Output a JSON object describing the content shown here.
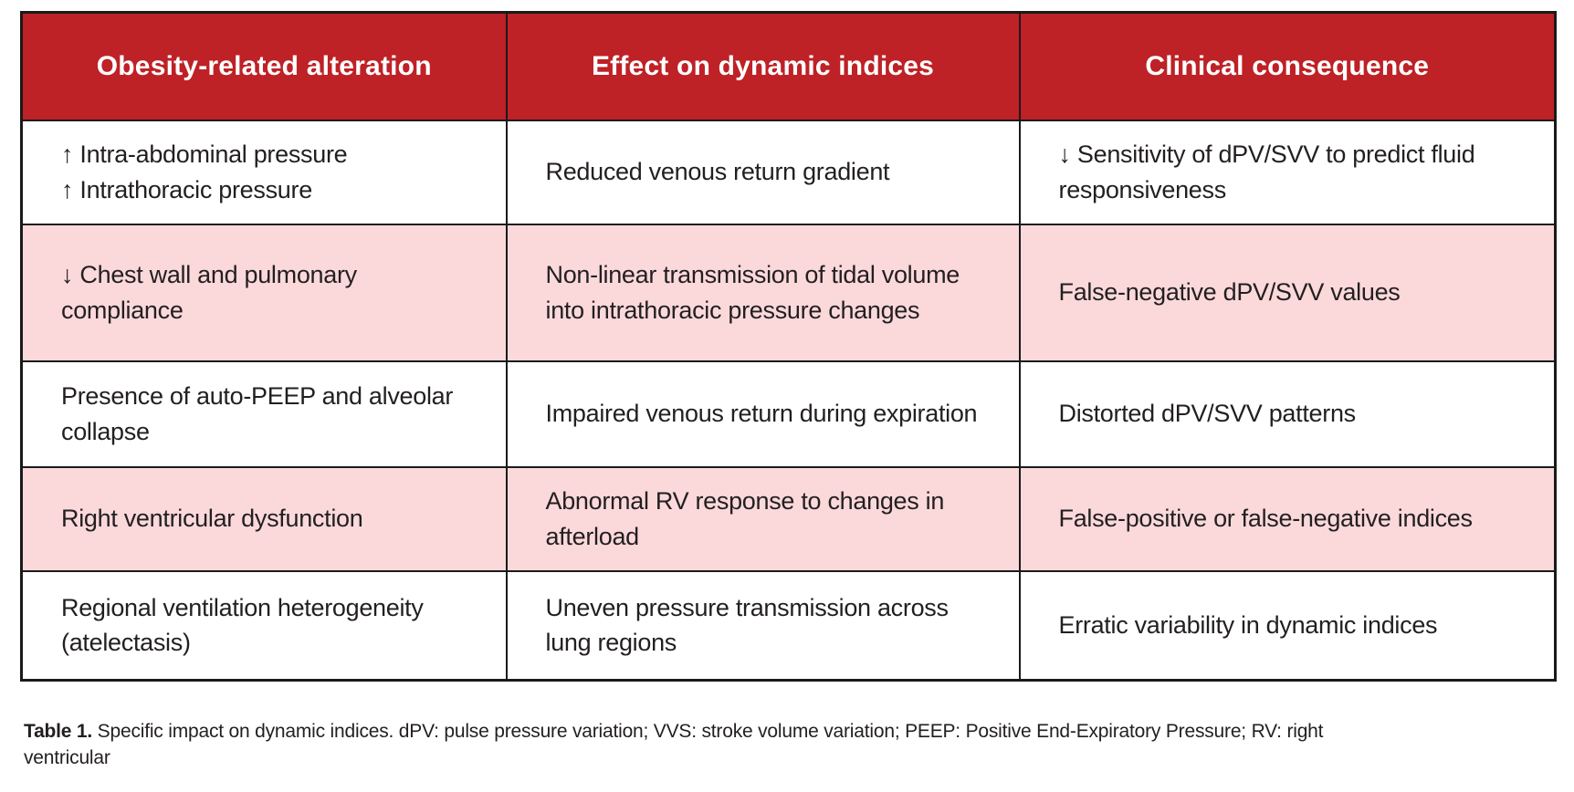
{
  "table": {
    "columns": [
      {
        "label": "Obesity-related alteration"
      },
      {
        "label": "Effect on dynamic indices"
      },
      {
        "label": "Clinical consequence"
      }
    ],
    "rows": [
      {
        "shaded": false,
        "cells": [
          "↑ Intra-abdominal pressure\n↑ Intrathoracic pressure",
          "Reduced venous return gradient",
          "↓ Sensitivity of dPV/SVV to predict fluid responsiveness"
        ]
      },
      {
        "shaded": true,
        "cells": [
          "↓ Chest wall and pulmonary compliance",
          "Non-linear transmission of tidal volume into intrathoracic pressure changes",
          "False-negative dPV/SVV values"
        ]
      },
      {
        "shaded": false,
        "cells": [
          "Presence of auto-PEEP and alveolar collapse",
          "Impaired venous return during expiration",
          "Distorted dPV/SVV patterns"
        ]
      },
      {
        "shaded": true,
        "cells": [
          "Right ventricular dysfunction",
          "Abnormal RV response to changes in afterload",
          "False-positive or false-negative indices"
        ]
      },
      {
        "shaded": false,
        "cells": [
          "Regional ventilation heterogeneity (atelectasis)",
          "Uneven pressure transmission across lung regions",
          "Erratic variability in dynamic indices"
        ]
      }
    ]
  },
  "caption": {
    "label": "Table 1.",
    "text": " Specific impact on dynamic indices. dPV: pulse pressure variation; VVS: stroke volume variation; PEEP: Positive End-Expiratory Pressure; RV: right ventricular"
  },
  "colors": {
    "header_bg": "#be2126",
    "header_text": "#ffffff",
    "shaded_row_bg": "#fbd9db",
    "body_text": "#231f20",
    "border": "#1a1a1a"
  }
}
